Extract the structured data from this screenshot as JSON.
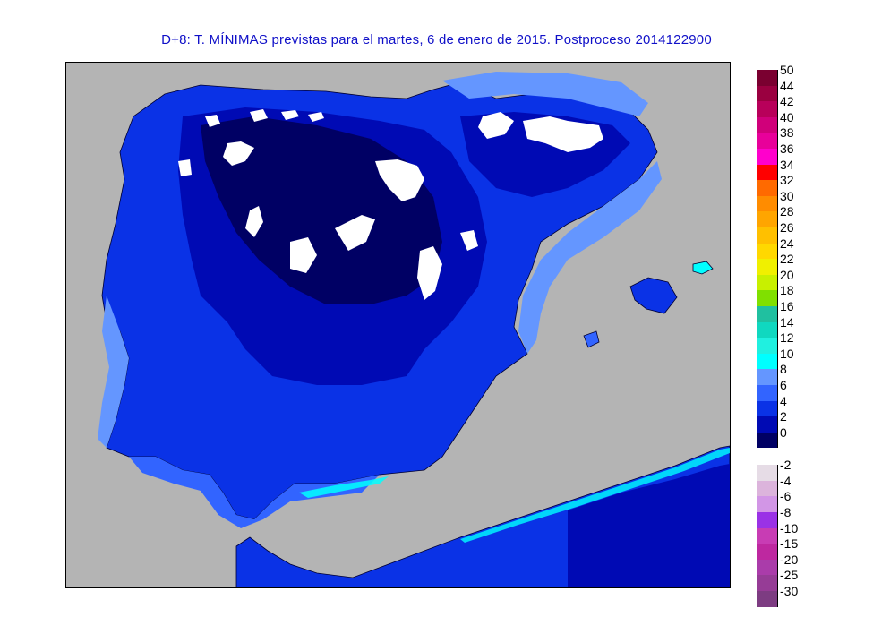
{
  "title": "D+8: T. MÍNIMAS previstas para el martes, 6 de enero de 2015. Postproceso 2014122900",
  "legend": {
    "positive": [
      {
        "label": "50",
        "color": "#7a0030"
      },
      {
        "label": "44",
        "color": "#9a0040"
      },
      {
        "label": "42",
        "color": "#b8005a"
      },
      {
        "label": "40",
        "color": "#d0007a"
      },
      {
        "label": "38",
        "color": "#e8009a"
      },
      {
        "label": "36",
        "color": "#ff00cc"
      },
      {
        "label": "34",
        "color": "#ff0000"
      },
      {
        "label": "32",
        "color": "#ff6a00"
      },
      {
        "label": "30",
        "color": "#ff8c00"
      },
      {
        "label": "28",
        "color": "#ffa500"
      },
      {
        "label": "26",
        "color": "#ffc000"
      },
      {
        "label": "24",
        "color": "#ffd800"
      },
      {
        "label": "22",
        "color": "#f0f000"
      },
      {
        "label": "20",
        "color": "#c8f000"
      },
      {
        "label": "18",
        "color": "#80e000"
      },
      {
        "label": "16",
        "color": "#20c0a0"
      },
      {
        "label": "14",
        "color": "#10d8c0"
      },
      {
        "label": "12",
        "color": "#20f0e0"
      },
      {
        "label": "10",
        "color": "#00ffff"
      },
      {
        "label": "8",
        "color": "#6496ff"
      },
      {
        "label": "6",
        "color": "#3264ff"
      },
      {
        "label": "4",
        "color": "#0a32e6"
      },
      {
        "label": "2",
        "color": "#000ab4"
      },
      {
        "label": "0",
        "color": "#000064"
      }
    ],
    "negative": [
      {
        "label": "-2",
        "color": "#e6dce6"
      },
      {
        "label": "-4",
        "color": "#dcb4dc"
      },
      {
        "label": "-6",
        "color": "#d296e6"
      },
      {
        "label": "-8",
        "color": "#9a32e6"
      },
      {
        "label": "-10",
        "color": "#c83cb4"
      },
      {
        "label": "-15",
        "color": "#be28a0"
      },
      {
        "label": "-20",
        "color": "#aa3caa"
      },
      {
        "label": "-25",
        "color": "#963c96"
      },
      {
        "label": "-30",
        "color": "#7d3c82"
      }
    ]
  },
  "colors": {
    "sea": "#b4b4b4",
    "land_base": "#0a32e6",
    "land_cold": "#000ab4",
    "land_coldest": "#000064",
    "land_mild": "#3264ff",
    "coast_warm": "#6496ff",
    "coast_warmest": "#00ffff",
    "frost": "#ffffff",
    "title_color": "#1010c8"
  }
}
